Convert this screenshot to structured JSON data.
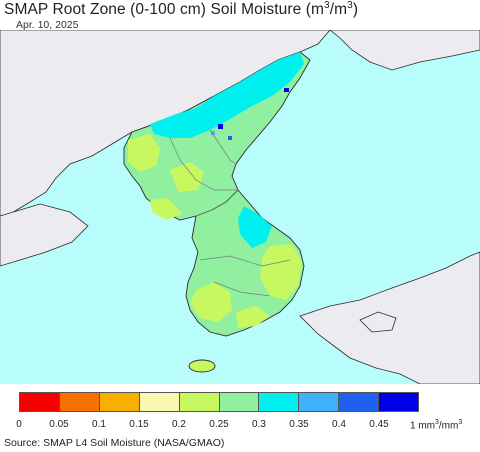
{
  "title": {
    "prefix": "SMAP Root Zone (0-100 cm) Soil Moisture (m",
    "mid": "/m",
    "suffix": ")",
    "sup": "3"
  },
  "date": "Apr. 10, 2025",
  "legend": {
    "ticks": [
      "0",
      "0.05",
      "0.1",
      "0.15",
      "0.2",
      "0.25",
      "0.3",
      "0.35",
      "0.4",
      "0.45"
    ],
    "unit_prefix": "1 mm",
    "unit_mid": "/mm",
    "unit_sup": "3",
    "colors": [
      "#f80000",
      "#f87000",
      "#f8b000",
      "#f8f8b0",
      "#c8f860",
      "#90f0a0",
      "#00f0f0",
      "#40b0f8",
      "#2060f0",
      "#0000e8"
    ]
  },
  "map_colors": {
    "ocean": "#b8fcfc",
    "foreign_land": "#ecebef",
    "coast": "#2a2a2a",
    "border": "#7a7a7a"
  },
  "source": "Source: SMAP L4 Soil Moisture (NASA/GMAO)"
}
